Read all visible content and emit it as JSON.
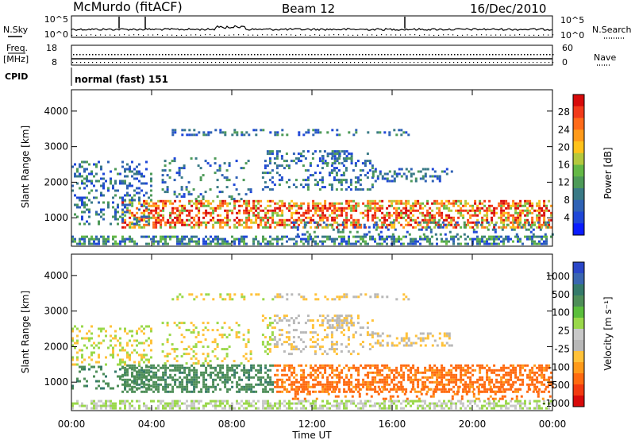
{
  "header": {
    "station": "McMurdo (fitACF)",
    "beam": "Beam 12",
    "date": "16/Dec/2010"
  },
  "left_labels": {
    "nsky": "N.Sky",
    "freq_line1": "Freq.",
    "freq_line2": "[MHz]",
    "cpid": "CPID"
  },
  "right_labels": {
    "nsearch": "N.Search",
    "nave": "Nave"
  },
  "noise_panel": {
    "left_ticks": [
      "10^5",
      "10^0"
    ],
    "right_ticks": [
      "10^5",
      "10^0"
    ]
  },
  "freq_panel": {
    "left_ticks": [
      "18",
      "8"
    ],
    "right_ticks": [
      "60",
      "0"
    ]
  },
  "cpid_text": "normal (fast) 151",
  "xaxis": {
    "title": "Time UT",
    "ticks": [
      "00:00",
      "04:00",
      "08:00",
      "12:00",
      "16:00",
      "20:00",
      "00:00"
    ]
  },
  "chart_data": [
    {
      "type": "heatmap",
      "title": "",
      "ylabel": "Slant Range [km]",
      "xlabel": "",
      "y_ticks": [
        "1000",
        "2000",
        "3000",
        "4000"
      ],
      "x": [
        "00:00",
        "04:00",
        "08:00",
        "12:00",
        "16:00",
        "20:00",
        "00:00"
      ],
      "ylim": [
        200,
        4600
      ],
      "colorbar": {
        "label": "Power [dB]",
        "ticks": [
          "4",
          "8",
          "12",
          "16",
          "20",
          "24",
          "28"
        ],
        "colors": [
          "#0a1cff",
          "#1f47d8",
          "#2f62b5",
          "#3a7a86",
          "#4d9a58",
          "#64b846",
          "#b4c83d",
          "#ffc21a",
          "#ff9a1a",
          "#ff6b1a",
          "#f23a1a",
          "#d70a0a"
        ]
      }
    },
    {
      "type": "heatmap",
      "title": "",
      "ylabel": "Slant Range [km]",
      "xlabel": "Time UT",
      "y_ticks": [
        "1000",
        "2000",
        "3000",
        "4000"
      ],
      "x": [
        "00:00",
        "04:00",
        "08:00",
        "12:00",
        "16:00",
        "20:00",
        "00:00"
      ],
      "ylim": [
        200,
        4600
      ],
      "colorbar": {
        "label": "Velocity [m s⁻¹]",
        "ticks": [
          "1000",
          "500",
          "100",
          "25",
          "-25",
          "-100",
          "-500",
          "-1000"
        ],
        "colors": [
          "#2a46c8",
          "#3a66b0",
          "#357a6a",
          "#4e8e58",
          "#5bbe3c",
          "#9ad84a",
          "#c8c8c8",
          "#b8b8b8",
          "#ffc23a",
          "#ff9a1a",
          "#ff6a10",
          "#f23a10",
          "#d80a0a"
        ]
      }
    }
  ]
}
